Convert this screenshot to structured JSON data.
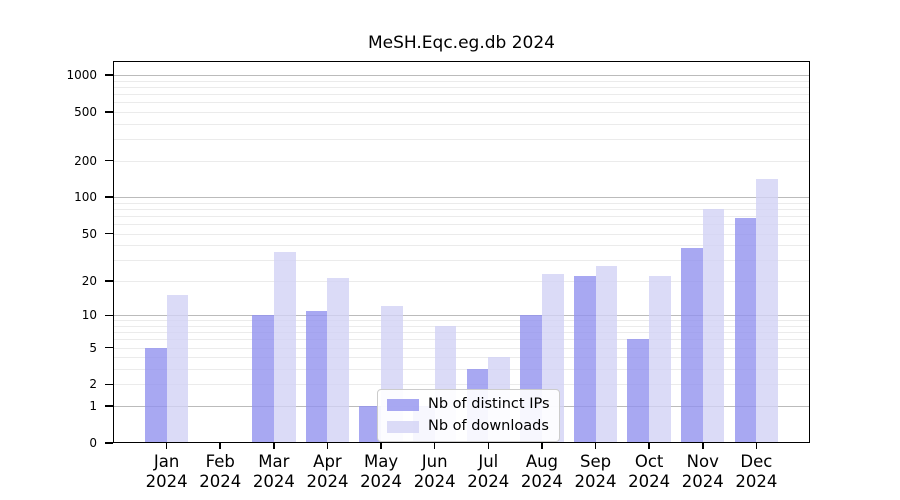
{
  "title": "MeSH.Eqc.eg.db 2024",
  "chart_data": {
    "type": "bar",
    "title": "MeSH.Eqc.eg.db 2024",
    "categories": [
      "Jan\n2024",
      "Feb\n2024",
      "Mar\n2024",
      "Apr\n2024",
      "May\n2024",
      "Jun\n2024",
      "Jul\n2024",
      "Aug\n2024",
      "Sep\n2024",
      "Oct\n2024",
      "Nov\n2024",
      "Dec\n2024"
    ],
    "series": [
      {
        "name": "Nb of distinct IPs",
        "color": "#9292ef",
        "values": [
          5,
          0,
          10,
          11,
          1,
          1,
          3,
          10,
          22,
          6,
          38,
          67
        ]
      },
      {
        "name": "Nb of downloads",
        "color": "#d2d2f5",
        "values": [
          15,
          0,
          35,
          21,
          12,
          8,
          4,
          23,
          27,
          22,
          80,
          140
        ]
      }
    ],
    "xlabel": "",
    "ylabel": "",
    "yscale": "log1p",
    "ylim": [
      0,
      1300
    ],
    "yticks": [
      0,
      1,
      2,
      5,
      10,
      20,
      50,
      100,
      200,
      500,
      1000
    ],
    "grid_major": [
      1,
      10,
      100,
      1000
    ],
    "grid_minor": [
      2,
      3,
      4,
      5,
      6,
      7,
      8,
      9,
      20,
      30,
      40,
      50,
      60,
      70,
      80,
      90,
      200,
      300,
      400,
      500,
      600,
      700,
      800,
      900
    ],
    "grid": "horizontal, major and minor, behind bars",
    "legend_position": "inside, lower center"
  },
  "colors": {
    "background": "#ffffff",
    "axis": "#000000",
    "grid_major": "#bbbbbb",
    "grid_minor": "#ebebeb",
    "legend_border": "#cccccc"
  }
}
